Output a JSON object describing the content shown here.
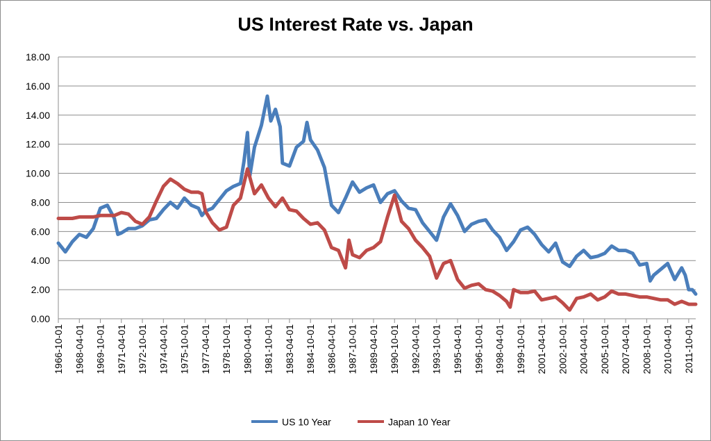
{
  "chart_data": {
    "type": "line",
    "title": "US Interest Rate vs. Japan",
    "xlabel": "",
    "ylabel": "",
    "ylim": [
      0,
      18
    ],
    "yticks": [
      "0.00",
      "2.00",
      "4.00",
      "6.00",
      "8.00",
      "10.00",
      "12.00",
      "14.00",
      "16.00",
      "18.00"
    ],
    "xticks": [
      "1966-10-01",
      "1968-04-01",
      "1969-10-01",
      "1971-04-01",
      "1972-10-01",
      "1974-04-01",
      "1975-10-01",
      "1977-04-01",
      "1978-10-01",
      "1980-04-01",
      "1981-10-01",
      "1983-04-01",
      "1984-10-01",
      "1986-04-01",
      "1987-10-01",
      "1989-04-01",
      "1990-10-01",
      "1992-04-01",
      "1993-10-01",
      "1995-04-01",
      "1996-10-01",
      "1998-04-01",
      "1999-10-01",
      "2001-04-01",
      "2002-10-01",
      "2004-04-01",
      "2005-10-01",
      "2007-04-01",
      "2008-10-01",
      "2010-04-01",
      "2011-10-01"
    ],
    "grid": true,
    "legend": "bottom",
    "series": [
      {
        "name": "US 10 Year",
        "color": "#4a7ebb",
        "points": [
          [
            "1966-10-01",
            5.2
          ],
          [
            "1967-04-01",
            4.6
          ],
          [
            "1967-10-01",
            5.3
          ],
          [
            "1968-04-01",
            5.8
          ],
          [
            "1968-10-01",
            5.6
          ],
          [
            "1969-04-01",
            6.2
          ],
          [
            "1969-10-01",
            7.6
          ],
          [
            "1970-04-01",
            7.8
          ],
          [
            "1970-10-01",
            6.9
          ],
          [
            "1971-01-01",
            5.8
          ],
          [
            "1971-04-01",
            5.9
          ],
          [
            "1971-10-01",
            6.2
          ],
          [
            "1972-04-01",
            6.2
          ],
          [
            "1972-10-01",
            6.4
          ],
          [
            "1973-04-01",
            6.8
          ],
          [
            "1973-10-01",
            6.9
          ],
          [
            "1974-04-01",
            7.5
          ],
          [
            "1974-10-01",
            8.0
          ],
          [
            "1975-04-01",
            7.6
          ],
          [
            "1975-10-01",
            8.3
          ],
          [
            "1976-04-01",
            7.8
          ],
          [
            "1976-10-01",
            7.6
          ],
          [
            "1977-01-01",
            7.1
          ],
          [
            "1977-04-01",
            7.4
          ],
          [
            "1977-10-01",
            7.6
          ],
          [
            "1978-04-01",
            8.2
          ],
          [
            "1978-10-01",
            8.8
          ],
          [
            "1979-04-01",
            9.1
          ],
          [
            "1979-10-01",
            9.3
          ],
          [
            "1980-01-01",
            10.8
          ],
          [
            "1980-04-01",
            12.8
          ],
          [
            "1980-06-01",
            9.8
          ],
          [
            "1980-10-01",
            11.8
          ],
          [
            "1981-04-01",
            13.3
          ],
          [
            "1981-09-01",
            15.3
          ],
          [
            "1981-12-01",
            13.6
          ],
          [
            "1982-04-01",
            14.4
          ],
          [
            "1982-08-01",
            13.2
          ],
          [
            "1982-10-01",
            10.7
          ],
          [
            "1983-04-01",
            10.5
          ],
          [
            "1983-10-01",
            11.8
          ],
          [
            "1984-04-01",
            12.2
          ],
          [
            "1984-07-01",
            13.5
          ],
          [
            "1984-10-01",
            12.3
          ],
          [
            "1985-04-01",
            11.6
          ],
          [
            "1985-10-01",
            10.4
          ],
          [
            "1986-04-01",
            7.8
          ],
          [
            "1986-10-01",
            7.3
          ],
          [
            "1987-04-01",
            8.3
          ],
          [
            "1987-10-01",
            9.4
          ],
          [
            "1988-04-01",
            8.7
          ],
          [
            "1988-10-01",
            9.0
          ],
          [
            "1989-04-01",
            9.2
          ],
          [
            "1989-10-01",
            8.0
          ],
          [
            "1990-04-01",
            8.6
          ],
          [
            "1990-10-01",
            8.8
          ],
          [
            "1991-04-01",
            8.1
          ],
          [
            "1991-10-01",
            7.6
          ],
          [
            "1992-04-01",
            7.5
          ],
          [
            "1992-10-01",
            6.6
          ],
          [
            "1993-04-01",
            6.0
          ],
          [
            "1993-10-01",
            5.4
          ],
          [
            "1994-04-01",
            7.0
          ],
          [
            "1994-10-01",
            7.9
          ],
          [
            "1995-04-01",
            7.1
          ],
          [
            "1995-10-01",
            6.0
          ],
          [
            "1996-04-01",
            6.5
          ],
          [
            "1996-10-01",
            6.7
          ],
          [
            "1997-04-01",
            6.8
          ],
          [
            "1997-10-01",
            6.1
          ],
          [
            "1998-04-01",
            5.6
          ],
          [
            "1998-10-01",
            4.7
          ],
          [
            "1999-04-01",
            5.3
          ],
          [
            "1999-10-01",
            6.1
          ],
          [
            "2000-04-01",
            6.3
          ],
          [
            "2000-10-01",
            5.8
          ],
          [
            "2001-04-01",
            5.1
          ],
          [
            "2001-10-01",
            4.6
          ],
          [
            "2002-04-01",
            5.2
          ],
          [
            "2002-10-01",
            3.9
          ],
          [
            "2003-04-01",
            3.6
          ],
          [
            "2003-10-01",
            4.3
          ],
          [
            "2004-04-01",
            4.7
          ],
          [
            "2004-10-01",
            4.2
          ],
          [
            "2005-04-01",
            4.3
          ],
          [
            "2005-10-01",
            4.5
          ],
          [
            "2006-04-01",
            5.0
          ],
          [
            "2006-10-01",
            4.7
          ],
          [
            "2007-04-01",
            4.7
          ],
          [
            "2007-10-01",
            4.5
          ],
          [
            "2008-04-01",
            3.7
          ],
          [
            "2008-10-01",
            3.8
          ],
          [
            "2009-01-01",
            2.6
          ],
          [
            "2009-04-01",
            3.0
          ],
          [
            "2009-10-01",
            3.4
          ],
          [
            "2010-04-01",
            3.8
          ],
          [
            "2010-10-01",
            2.7
          ],
          [
            "2011-04-01",
            3.5
          ],
          [
            "2011-07-01",
            3.0
          ],
          [
            "2011-10-01",
            2.0
          ],
          [
            "2012-01-01",
            2.0
          ],
          [
            "2012-04-01",
            1.7
          ]
        ]
      },
      {
        "name": "Japan 10 Year",
        "color": "#be4b48",
        "points": [
          [
            "1966-10-01",
            6.9
          ],
          [
            "1967-04-01",
            6.9
          ],
          [
            "1967-10-01",
            6.9
          ],
          [
            "1968-04-01",
            7.0
          ],
          [
            "1968-10-01",
            7.0
          ],
          [
            "1969-04-01",
            7.0
          ],
          [
            "1969-10-01",
            7.1
          ],
          [
            "1970-04-01",
            7.1
          ],
          [
            "1970-10-01",
            7.1
          ],
          [
            "1971-04-01",
            7.3
          ],
          [
            "1971-10-01",
            7.2
          ],
          [
            "1972-04-01",
            6.7
          ],
          [
            "1972-10-01",
            6.5
          ],
          [
            "1973-04-01",
            7.0
          ],
          [
            "1973-10-01",
            8.1
          ],
          [
            "1974-04-01",
            9.1
          ],
          [
            "1974-10-01",
            9.6
          ],
          [
            "1975-04-01",
            9.3
          ],
          [
            "1975-10-01",
            8.9
          ],
          [
            "1976-04-01",
            8.7
          ],
          [
            "1976-10-01",
            8.7
          ],
          [
            "1977-01-01",
            8.6
          ],
          [
            "1977-04-01",
            7.4
          ],
          [
            "1977-10-01",
            6.6
          ],
          [
            "1978-04-01",
            6.1
          ],
          [
            "1978-10-01",
            6.3
          ],
          [
            "1979-04-01",
            7.8
          ],
          [
            "1979-10-01",
            8.3
          ],
          [
            "1980-04-01",
            10.3
          ],
          [
            "1980-10-01",
            8.6
          ],
          [
            "1981-04-01",
            9.2
          ],
          [
            "1981-10-01",
            8.3
          ],
          [
            "1982-04-01",
            7.7
          ],
          [
            "1982-10-01",
            8.3
          ],
          [
            "1983-04-01",
            7.5
          ],
          [
            "1983-10-01",
            7.4
          ],
          [
            "1984-04-01",
            6.9
          ],
          [
            "1984-10-01",
            6.5
          ],
          [
            "1985-04-01",
            6.6
          ],
          [
            "1985-10-01",
            6.1
          ],
          [
            "1986-04-01",
            4.9
          ],
          [
            "1986-10-01",
            4.7
          ],
          [
            "1987-04-01",
            3.5
          ],
          [
            "1987-07-01",
            5.4
          ],
          [
            "1987-10-01",
            4.4
          ],
          [
            "1988-04-01",
            4.2
          ],
          [
            "1988-10-01",
            4.7
          ],
          [
            "1989-04-01",
            4.9
          ],
          [
            "1989-10-01",
            5.3
          ],
          [
            "1990-04-01",
            7.0
          ],
          [
            "1990-10-01",
            8.5
          ],
          [
            "1991-04-01",
            6.7
          ],
          [
            "1991-10-01",
            6.2
          ],
          [
            "1992-04-01",
            5.4
          ],
          [
            "1992-10-01",
            4.9
          ],
          [
            "1993-04-01",
            4.3
          ],
          [
            "1993-10-01",
            2.8
          ],
          [
            "1994-04-01",
            3.8
          ],
          [
            "1994-10-01",
            4.0
          ],
          [
            "1995-04-01",
            2.7
          ],
          [
            "1995-10-01",
            2.1
          ],
          [
            "1996-04-01",
            2.3
          ],
          [
            "1996-10-01",
            2.4
          ],
          [
            "1997-04-01",
            2.0
          ],
          [
            "1997-10-01",
            1.9
          ],
          [
            "1998-04-01",
            1.6
          ],
          [
            "1998-10-01",
            1.2
          ],
          [
            "1999-01-01",
            0.8
          ],
          [
            "1999-04-01",
            2.0
          ],
          [
            "1999-10-01",
            1.8
          ],
          [
            "2000-04-01",
            1.8
          ],
          [
            "2000-10-01",
            1.9
          ],
          [
            "2001-04-01",
            1.3
          ],
          [
            "2001-10-01",
            1.4
          ],
          [
            "2002-04-01",
            1.5
          ],
          [
            "2002-10-01",
            1.1
          ],
          [
            "2003-04-01",
            0.6
          ],
          [
            "2003-10-01",
            1.4
          ],
          [
            "2004-04-01",
            1.5
          ],
          [
            "2004-10-01",
            1.7
          ],
          [
            "2005-04-01",
            1.3
          ],
          [
            "2005-10-01",
            1.5
          ],
          [
            "2006-04-01",
            1.9
          ],
          [
            "2006-10-01",
            1.7
          ],
          [
            "2007-04-01",
            1.7
          ],
          [
            "2007-10-01",
            1.6
          ],
          [
            "2008-04-01",
            1.5
          ],
          [
            "2008-10-01",
            1.5
          ],
          [
            "2009-04-01",
            1.4
          ],
          [
            "2009-10-01",
            1.3
          ],
          [
            "2010-04-01",
            1.3
          ],
          [
            "2010-10-01",
            1.0
          ],
          [
            "2011-04-01",
            1.2
          ],
          [
            "2011-10-01",
            1.0
          ],
          [
            "2012-04-01",
            1.0
          ]
        ]
      }
    ]
  }
}
